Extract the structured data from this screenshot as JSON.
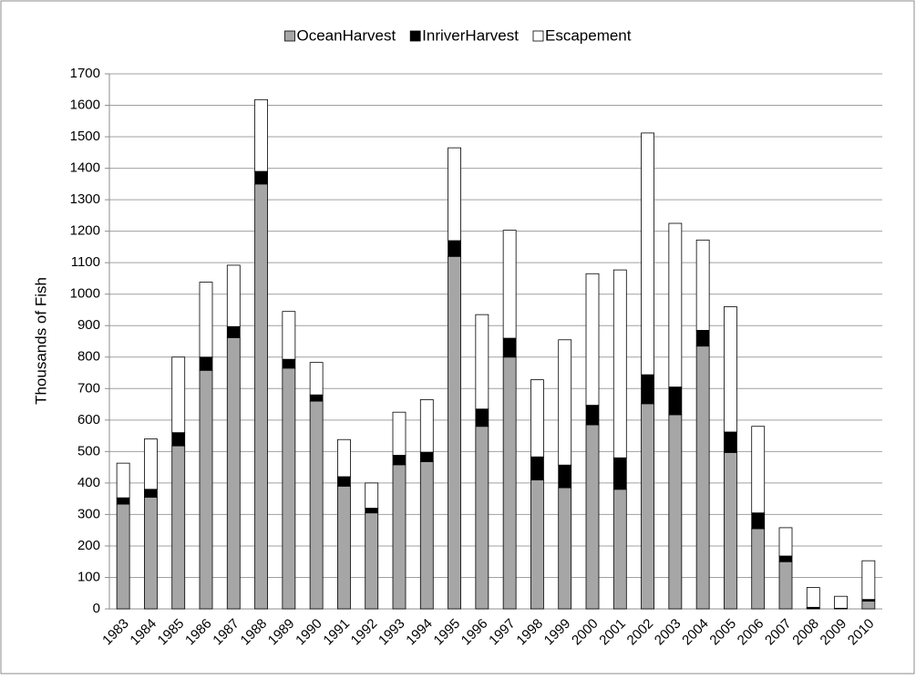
{
  "chart_data": {
    "type": "stacked-bar",
    "y_label": "Thousands of Fish",
    "categories": [
      "1983",
      "1984",
      "1985",
      "1986",
      "1987",
      "1988",
      "1989",
      "1990",
      "1991",
      "1992",
      "1993",
      "1994",
      "1995",
      "1996",
      "1997",
      "1998",
      "1999",
      "2000",
      "2001",
      "2002",
      "2003",
      "2004",
      "2005",
      "2006",
      "2007",
      "2008",
      "2009",
      "2010"
    ],
    "series": [
      {
        "name": "OceanHarvest",
        "color": "#a6a6a6",
        "values": [
          333,
          355,
          518,
          758,
          862,
          1350,
          765,
          660,
          390,
          305,
          458,
          468,
          1120,
          580,
          800,
          410,
          385,
          585,
          380,
          652,
          617,
          835,
          497,
          255,
          150,
          2,
          0,
          25
        ]
      },
      {
        "name": "InriverHarvest",
        "color": "#000000",
        "values": [
          20,
          25,
          42,
          42,
          35,
          40,
          28,
          20,
          30,
          15,
          30,
          30,
          50,
          55,
          60,
          73,
          72,
          62,
          100,
          92,
          88,
          50,
          65,
          50,
          18,
          3,
          2,
          5
        ]
      },
      {
        "name": "Escapement",
        "color": "#ffffff",
        "values": [
          110,
          160,
          240,
          238,
          195,
          228,
          152,
          103,
          118,
          80,
          137,
          167,
          295,
          300,
          343,
          245,
          398,
          418,
          597,
          768,
          520,
          287,
          398,
          275,
          90,
          63,
          38,
          123
        ]
      }
    ],
    "ylim": [
      0,
      1700
    ],
    "yticks": [
      0,
      100,
      200,
      300,
      400,
      500,
      600,
      700,
      800,
      900,
      1000,
      1100,
      1200,
      1300,
      1400,
      1500,
      1600,
      1700
    ],
    "grid": true,
    "legend": "top"
  }
}
